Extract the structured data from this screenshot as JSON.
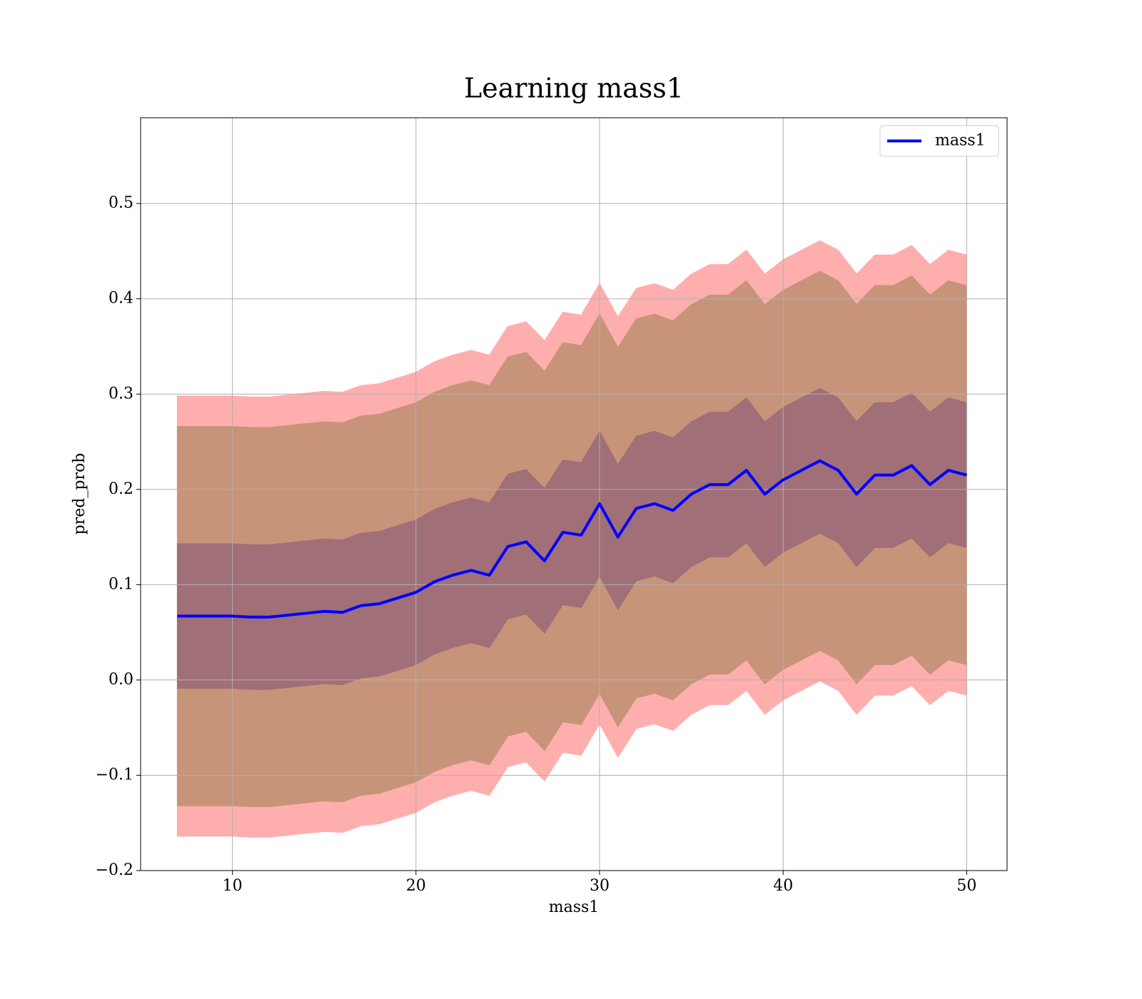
{
  "chart_data": {
    "type": "line",
    "title": "Learning mass1",
    "x_label": "mass1",
    "y_label": "pred_prob",
    "x": [
      7,
      8,
      9,
      10,
      11,
      12,
      13,
      14,
      15,
      16,
      17,
      18,
      19,
      20,
      21,
      22,
      23,
      24,
      25,
      26,
      27,
      28,
      29,
      30,
      31,
      32,
      33,
      34,
      35,
      36,
      37,
      38,
      39,
      40,
      41,
      42,
      43,
      44,
      45,
      46,
      47,
      48,
      49,
      50
    ],
    "series": [
      {
        "name": "mass1",
        "color": "#0000ff",
        "values": [
          0.067,
          0.067,
          0.067,
          0.067,
          0.066,
          0.066,
          0.068,
          0.07,
          0.072,
          0.071,
          0.078,
          0.08,
          0.086,
          0.092,
          0.103,
          0.11,
          0.115,
          0.11,
          0.14,
          0.145,
          0.125,
          0.155,
          0.152,
          0.185,
          0.15,
          0.18,
          0.185,
          0.178,
          0.195,
          0.205,
          0.205,
          0.22,
          0.195,
          0.21,
          0.22,
          0.23,
          0.22,
          0.195,
          0.215,
          0.215,
          0.225,
          0.205,
          0.22,
          0.215
        ]
      }
    ],
    "bands": [
      {
        "color": "#ffaeae",
        "upper": [
          0.298,
          0.298,
          0.298,
          0.298,
          0.297,
          0.297,
          0.299,
          0.301,
          0.303,
          0.302,
          0.309,
          0.311,
          0.317,
          0.323,
          0.334,
          0.341,
          0.346,
          0.341,
          0.371,
          0.376,
          0.356,
          0.386,
          0.383,
          0.416,
          0.381,
          0.411,
          0.416,
          0.409,
          0.426,
          0.436,
          0.436,
          0.451,
          0.426,
          0.441,
          0.451,
          0.461,
          0.451,
          0.426,
          0.446,
          0.446,
          0.456,
          0.436,
          0.451,
          0.446
        ],
        "lower": [
          -0.164,
          -0.164,
          -0.164,
          -0.164,
          -0.165,
          -0.165,
          -0.163,
          -0.161,
          -0.159,
          -0.16,
          -0.153,
          -0.151,
          -0.145,
          -0.139,
          -0.128,
          -0.121,
          -0.116,
          -0.121,
          -0.091,
          -0.086,
          -0.106,
          -0.076,
          -0.079,
          -0.046,
          -0.081,
          -0.051,
          -0.046,
          -0.053,
          -0.036,
          -0.026,
          -0.026,
          -0.011,
          -0.036,
          -0.021,
          -0.011,
          -0.001,
          -0.011,
          -0.036,
          -0.016,
          -0.016,
          -0.006,
          -0.026,
          -0.011,
          -0.016
        ]
      },
      {
        "color": "#c89479",
        "upper": [
          0.266,
          0.266,
          0.266,
          0.266,
          0.265,
          0.265,
          0.267,
          0.269,
          0.271,
          0.27,
          0.277,
          0.279,
          0.285,
          0.291,
          0.302,
          0.309,
          0.314,
          0.309,
          0.339,
          0.344,
          0.324,
          0.354,
          0.351,
          0.384,
          0.349,
          0.379,
          0.384,
          0.377,
          0.394,
          0.404,
          0.404,
          0.419,
          0.394,
          0.409,
          0.419,
          0.429,
          0.419,
          0.394,
          0.414,
          0.414,
          0.424,
          0.404,
          0.419,
          0.414
        ],
        "lower": [
          -0.132,
          -0.132,
          -0.132,
          -0.132,
          -0.133,
          -0.133,
          -0.131,
          -0.129,
          -0.127,
          -0.128,
          -0.121,
          -0.119,
          -0.113,
          -0.107,
          -0.096,
          -0.089,
          -0.084,
          -0.089,
          -0.059,
          -0.054,
          -0.074,
          -0.044,
          -0.047,
          -0.014,
          -0.049,
          -0.019,
          -0.014,
          -0.021,
          -0.004,
          0.006,
          0.006,
          0.021,
          -0.004,
          0.011,
          0.021,
          0.031,
          0.021,
          -0.004,
          0.016,
          0.016,
          0.026,
          0.006,
          0.021,
          0.016
        ]
      },
      {
        "color": "#a06f78",
        "upper": [
          0.143,
          0.143,
          0.143,
          0.143,
          0.142,
          0.142,
          0.144,
          0.146,
          0.148,
          0.147,
          0.154,
          0.156,
          0.162,
          0.168,
          0.179,
          0.186,
          0.191,
          0.186,
          0.216,
          0.221,
          0.201,
          0.231,
          0.228,
          0.261,
          0.226,
          0.256,
          0.261,
          0.254,
          0.271,
          0.281,
          0.281,
          0.296,
          0.271,
          0.286,
          0.296,
          0.306,
          0.296,
          0.271,
          0.291,
          0.291,
          0.301,
          0.281,
          0.296,
          0.291
        ],
        "lower": [
          -0.009,
          -0.009,
          -0.009,
          -0.009,
          -0.01,
          -0.01,
          -0.008,
          -0.006,
          -0.004,
          -0.005,
          0.002,
          0.004,
          0.01,
          0.016,
          0.027,
          0.034,
          0.039,
          0.034,
          0.064,
          0.069,
          0.049,
          0.079,
          0.076,
          0.109,
          0.074,
          0.104,
          0.109,
          0.102,
          0.119,
          0.129,
          0.129,
          0.144,
          0.119,
          0.134,
          0.144,
          0.154,
          0.144,
          0.119,
          0.139,
          0.139,
          0.149,
          0.129,
          0.144,
          0.139
        ]
      }
    ],
    "xlim": [
      5,
      52.2
    ],
    "ylim": [
      -0.2,
      0.59
    ],
    "xticks": [
      10,
      20,
      30,
      40,
      50
    ],
    "yticks": [
      {
        "value": -0.2,
        "label": "−0.2"
      },
      {
        "value": -0.1,
        "label": "−0.1"
      },
      {
        "value": 0,
        "label": "0.0"
      },
      0.1,
      0.2,
      0.3,
      0.4,
      0.5
    ],
    "grid": true,
    "legend": "upper right"
  }
}
